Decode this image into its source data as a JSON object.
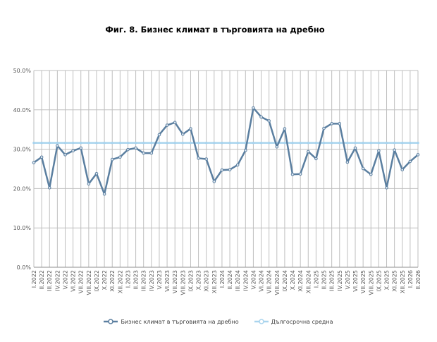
{
  "chart_data": {
    "type": "line",
    "title": "Фиг. 8. Бизнес климат в търговията на дребно",
    "xlabel": "",
    "ylabel": "",
    "ylim": [
      0,
      50
    ],
    "y_ticks": [
      "0.0%",
      "10.0%",
      "20.0%",
      "30.0%",
      "40.0%",
      "50.0%"
    ],
    "grid": true,
    "legend_position": "bottom",
    "categories": [
      "I.2022",
      "II.2022",
      "III.2022",
      "IV.2022",
      "V.2022",
      "VI.2022",
      "VII.2022",
      "VIII.2022",
      "IX.2022",
      "X.2022",
      "XI.2022",
      "XII.2022",
      "I.2023",
      "II.2023",
      "III.2023",
      "IV.2023",
      "V.2023",
      "VI.2023",
      "VII.2023",
      "VIII.2023",
      "IX.2023",
      "X.2023",
      "XI.2023",
      "XII.2023",
      "I.2024",
      "II.2024",
      "III.2024",
      "IV.2024",
      "V.2024",
      "VI.2024",
      "VII.2024",
      "VIII.2024",
      "IX.2024",
      "X.2024",
      "XI.2024",
      "XII.2024",
      "I.2025",
      "II.2025",
      "III.2025",
      "IV.2025",
      "V.2025",
      "VI.2025",
      "VII.2025",
      "VIII.2025",
      "IX.2025",
      "X.2025",
      "XI.2025",
      "XII.2025",
      "I.2026",
      "II.2026"
    ],
    "series": [
      {
        "name": "Бизнес климат в търговията на дребно",
        "color": "#5b7fa0",
        "values": [
          26.6,
          28.0,
          20.2,
          30.9,
          28.6,
          29.6,
          30.3,
          21.2,
          23.8,
          18.6,
          27.4,
          28.0,
          29.9,
          30.3,
          29.0,
          29.0,
          33.7,
          36.1,
          36.8,
          33.8,
          35.2,
          27.7,
          27.5,
          21.8,
          24.7,
          24.8,
          26.0,
          29.7,
          40.5,
          38.2,
          37.2,
          30.6,
          35.2,
          23.6,
          23.7,
          29.4,
          27.6,
          35.3,
          36.5,
          36.5,
          26.7,
          30.3,
          25.1,
          23.6,
          29.6,
          20.2,
          29.8,
          24.8,
          26.9,
          28.6
        ]
      },
      {
        "name": "Дългосрочна средна",
        "color": "#a9d4ee",
        "values": [
          31.6,
          31.6,
          31.6,
          31.6,
          31.6,
          31.6,
          31.6,
          31.6,
          31.6,
          31.6,
          31.6,
          31.6,
          31.6,
          31.6,
          31.6,
          31.6,
          31.6,
          31.6,
          31.6,
          31.6,
          31.6,
          31.6,
          31.6,
          31.6,
          31.6,
          31.6,
          31.6,
          31.6,
          31.6,
          31.6,
          31.6,
          31.6,
          31.6,
          31.6,
          31.6,
          31.6,
          31.6,
          31.6,
          31.6,
          31.6,
          31.6,
          31.6,
          31.6,
          31.6,
          31.6,
          31.6,
          31.6,
          31.6,
          31.6,
          31.6
        ]
      }
    ]
  }
}
